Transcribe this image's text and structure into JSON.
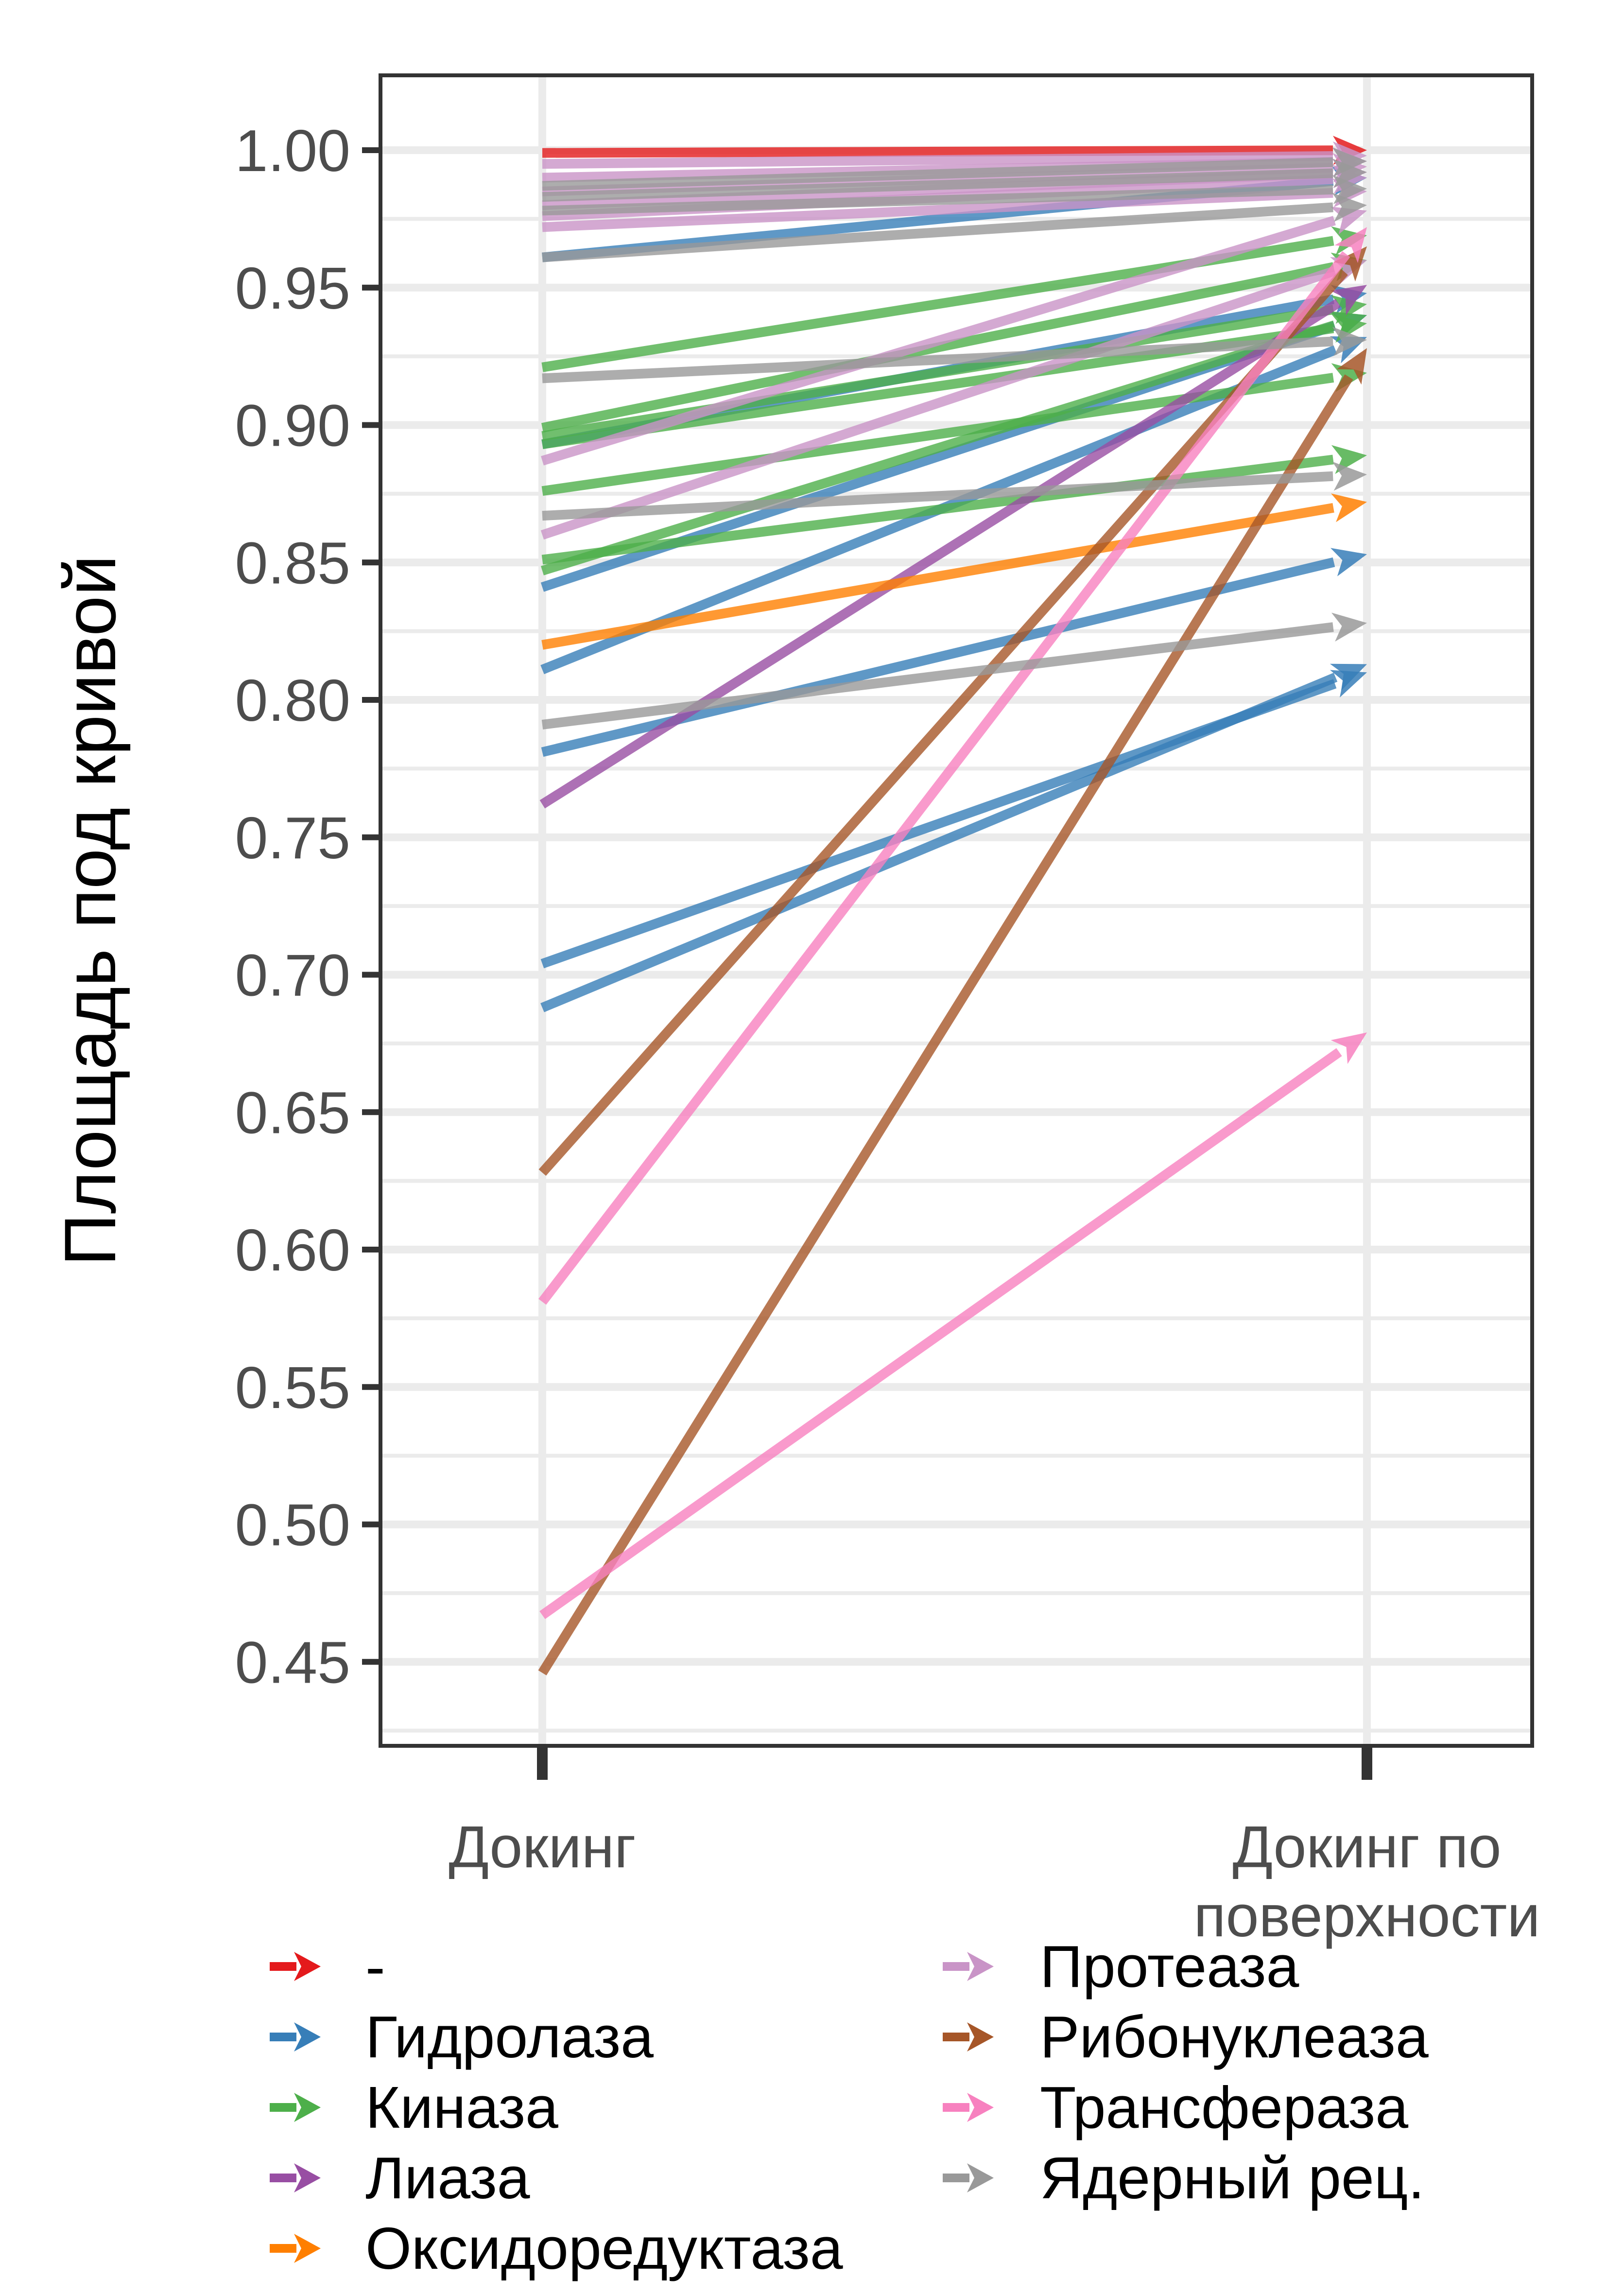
{
  "chart_data": {
    "type": "line",
    "ylabel": "Площадь под кривой",
    "x": [
      "Докинг",
      "Докинг по поверхности"
    ],
    "x_tick_lines": [
      [
        "Докинг"
      ],
      [
        "Докинг по",
        "поверхности"
      ]
    ],
    "ylim": [
      0.42,
      1.025
    ],
    "yticks": [
      0.45,
      0.5,
      0.55,
      0.6,
      0.65,
      0.7,
      0.75,
      0.8,
      0.85,
      0.9,
      0.95,
      1.0
    ],
    "ytick_labels": [
      "0.45",
      "0.50",
      "0.55",
      "0.60",
      "0.65",
      "0.70",
      "0.75",
      "0.80",
      "0.85",
      "0.90",
      "0.95",
      "1.00"
    ],
    "grid": true,
    "legend_position": "bottom",
    "groups": [
      {
        "name": "-",
        "color": "#E41A1C",
        "pairs": [
          [
            0.999,
            1.0
          ]
        ]
      },
      {
        "name": "Гидролаза",
        "color": "#377EB8",
        "pairs": [
          [
            0.961,
            0.99
          ],
          [
            0.893,
            0.948
          ],
          [
            0.841,
            0.94
          ],
          [
            0.811,
            0.932
          ],
          [
            0.781,
            0.853
          ],
          [
            0.704,
            0.81
          ],
          [
            0.688,
            0.813
          ]
        ]
      },
      {
        "name": "Киназа",
        "color": "#4DAF4A",
        "pairs": [
          [
            0.921,
            0.969
          ],
          [
            0.899,
            0.96
          ],
          [
            0.896,
            0.944
          ],
          [
            0.893,
            0.937
          ],
          [
            0.876,
            0.919
          ],
          [
            0.851,
            0.889
          ],
          [
            0.847,
            0.94
          ]
        ]
      },
      {
        "name": "Лиаза",
        "color": "#984EA3",
        "pairs": [
          [
            0.762,
            0.951
          ]
        ]
      },
      {
        "name": "Оксидоредуктаза",
        "color": "#FF7F00",
        "pairs": [
          [
            0.82,
            0.872
          ]
        ]
      },
      {
        "name": "Протеаза",
        "color": "#C994C7",
        "pairs": [
          [
            0.995,
            0.998
          ],
          [
            0.99,
            0.996
          ],
          [
            0.985,
            0.994
          ],
          [
            0.98,
            0.992
          ],
          [
            0.976,
            0.99
          ],
          [
            0.972,
            0.985
          ],
          [
            0.887,
            0.978
          ],
          [
            0.86,
            0.96
          ]
        ]
      },
      {
        "name": "Рибонуклеаза",
        "color": "#A65628",
        "pairs": [
          [
            0.628,
            0.965
          ],
          [
            0.446,
            0.928
          ]
        ]
      },
      {
        "name": "Трансфераза",
        "color": "#F781BF",
        "pairs": [
          [
            0.581,
            0.972
          ],
          [
            0.467,
            0.679
          ]
        ]
      },
      {
        "name": "Ядерный рец.",
        "color": "#999999",
        "pairs": [
          [
            0.987,
            0.996
          ],
          [
            0.983,
            0.992
          ],
          [
            0.978,
            0.986
          ],
          [
            0.961,
            0.98
          ],
          [
            0.917,
            0.931
          ],
          [
            0.867,
            0.882
          ],
          [
            0.791,
            0.828
          ]
        ]
      }
    ]
  }
}
